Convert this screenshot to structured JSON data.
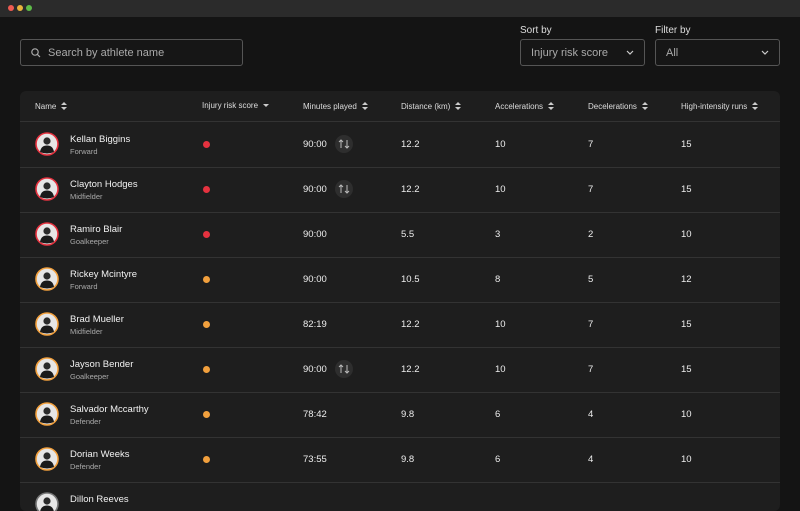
{
  "search": {
    "placeholder": "Search by athlete name"
  },
  "sort": {
    "label": "Sort by",
    "value": "Injury risk score"
  },
  "filter": {
    "label": "Filter by",
    "value": "All"
  },
  "table": {
    "columns": [
      "Name",
      "Injury risk score",
      "Minutes played",
      "Distance (km)",
      "Accelerations",
      "Decelerations",
      "High-intensity runs"
    ],
    "sorted_column": 1,
    "rows": [
      {
        "name": "Kellan Biggins",
        "position": "Forward",
        "risk_color": "#e5323f",
        "minutes": "90:00",
        "swap": true,
        "distance": 12.2,
        "accelerations": 10,
        "decelerations": 7,
        "high_intensity_runs": 15
      },
      {
        "name": "Clayton Hodges",
        "position": "Midfielder",
        "risk_color": "#e5323f",
        "minutes": "90:00",
        "swap": true,
        "distance": 12.2,
        "accelerations": 10,
        "decelerations": 7,
        "high_intensity_runs": 15
      },
      {
        "name": "Ramiro Blair",
        "position": "Goalkeeper",
        "risk_color": "#e5323f",
        "minutes": "90:00",
        "swap": false,
        "distance": 5.5,
        "accelerations": 3,
        "decelerations": 2,
        "high_intensity_runs": 10
      },
      {
        "name": "Rickey Mcintyre",
        "position": "Forward",
        "risk_color": "#f2a03d",
        "minutes": "90:00",
        "swap": false,
        "distance": 10.5,
        "accelerations": 8,
        "decelerations": 5,
        "high_intensity_runs": 12
      },
      {
        "name": "Brad Mueller",
        "position": "Midfielder",
        "risk_color": "#f2a03d",
        "minutes": "82:19",
        "swap": false,
        "distance": 12.2,
        "accelerations": 10,
        "decelerations": 7,
        "high_intensity_runs": 15
      },
      {
        "name": "Jayson Bender",
        "position": "Goalkeeper",
        "risk_color": "#f2a03d",
        "minutes": "90:00",
        "swap": true,
        "distance": 12.2,
        "accelerations": 10,
        "decelerations": 7,
        "high_intensity_runs": 15
      },
      {
        "name": "Salvador Mccarthy",
        "position": "Defender",
        "risk_color": "#f2a03d",
        "minutes": "78:42",
        "swap": false,
        "distance": 9.8,
        "accelerations": 6,
        "decelerations": 4,
        "high_intensity_runs": 10
      },
      {
        "name": "Dorian Weeks",
        "position": "Defender",
        "risk_color": "#f2a03d",
        "minutes": "73:55",
        "swap": false,
        "distance": 9.8,
        "accelerations": 6,
        "decelerations": 4,
        "high_intensity_runs": 10
      },
      {
        "name": "Dillon Reeves"
      }
    ]
  }
}
